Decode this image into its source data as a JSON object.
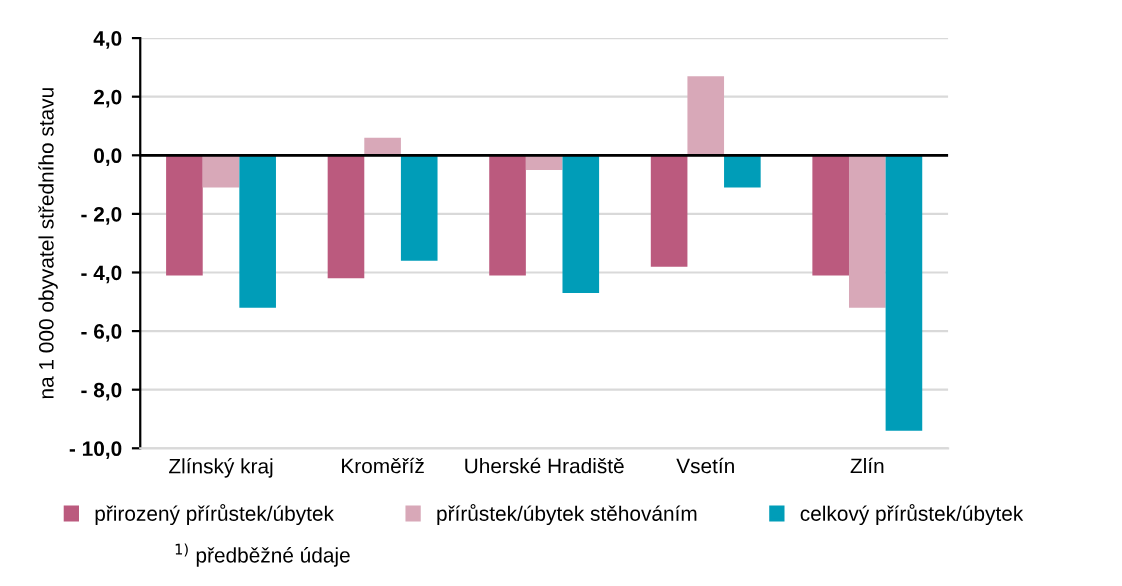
{
  "chart_data": {
    "type": "bar",
    "ylabel": "na 1 000 obyvatel středního stavu",
    "categories": [
      "Zlínský kraj",
      "Kroměříž",
      "Uherské Hradiště",
      "Vsetín",
      "Zlín"
    ],
    "series": [
      {
        "name": "přirozený přírůstek/úbytek",
        "color": "#bb5a7e",
        "values": [
          -4.1,
          -4.2,
          -4.1,
          -3.8,
          -4.1
        ]
      },
      {
        "name": "přírůstek/úbytek stěhováním",
        "color": "#d8a8b8",
        "values": [
          -1.1,
          0.6,
          -0.5,
          2.7,
          -5.2
        ]
      },
      {
        "name": "celkový přírůstek/úbytek",
        "color": "#009db8",
        "values": [
          -5.2,
          -3.6,
          -4.7,
          -1.1,
          -9.4
        ]
      }
    ],
    "ylim": [
      -10,
      4
    ],
    "yticks": [
      {
        "value": -10,
        "label": "- 10,0"
      },
      {
        "value": -8,
        "label": "- 8,0"
      },
      {
        "value": -6,
        "label": "- 6,0"
      },
      {
        "value": -4,
        "label": "- 4,0"
      },
      {
        "value": -2,
        "label": "- 2,0"
      },
      {
        "value": 0,
        "label": "0,0"
      },
      {
        "value": 2,
        "label": "2,0"
      },
      {
        "value": 4,
        "label": "4,0"
      }
    ],
    "grid": "y",
    "legend": "bottom",
    "annotations": [
      "$^{1)}$ předběžné údaje"
    ]
  }
}
